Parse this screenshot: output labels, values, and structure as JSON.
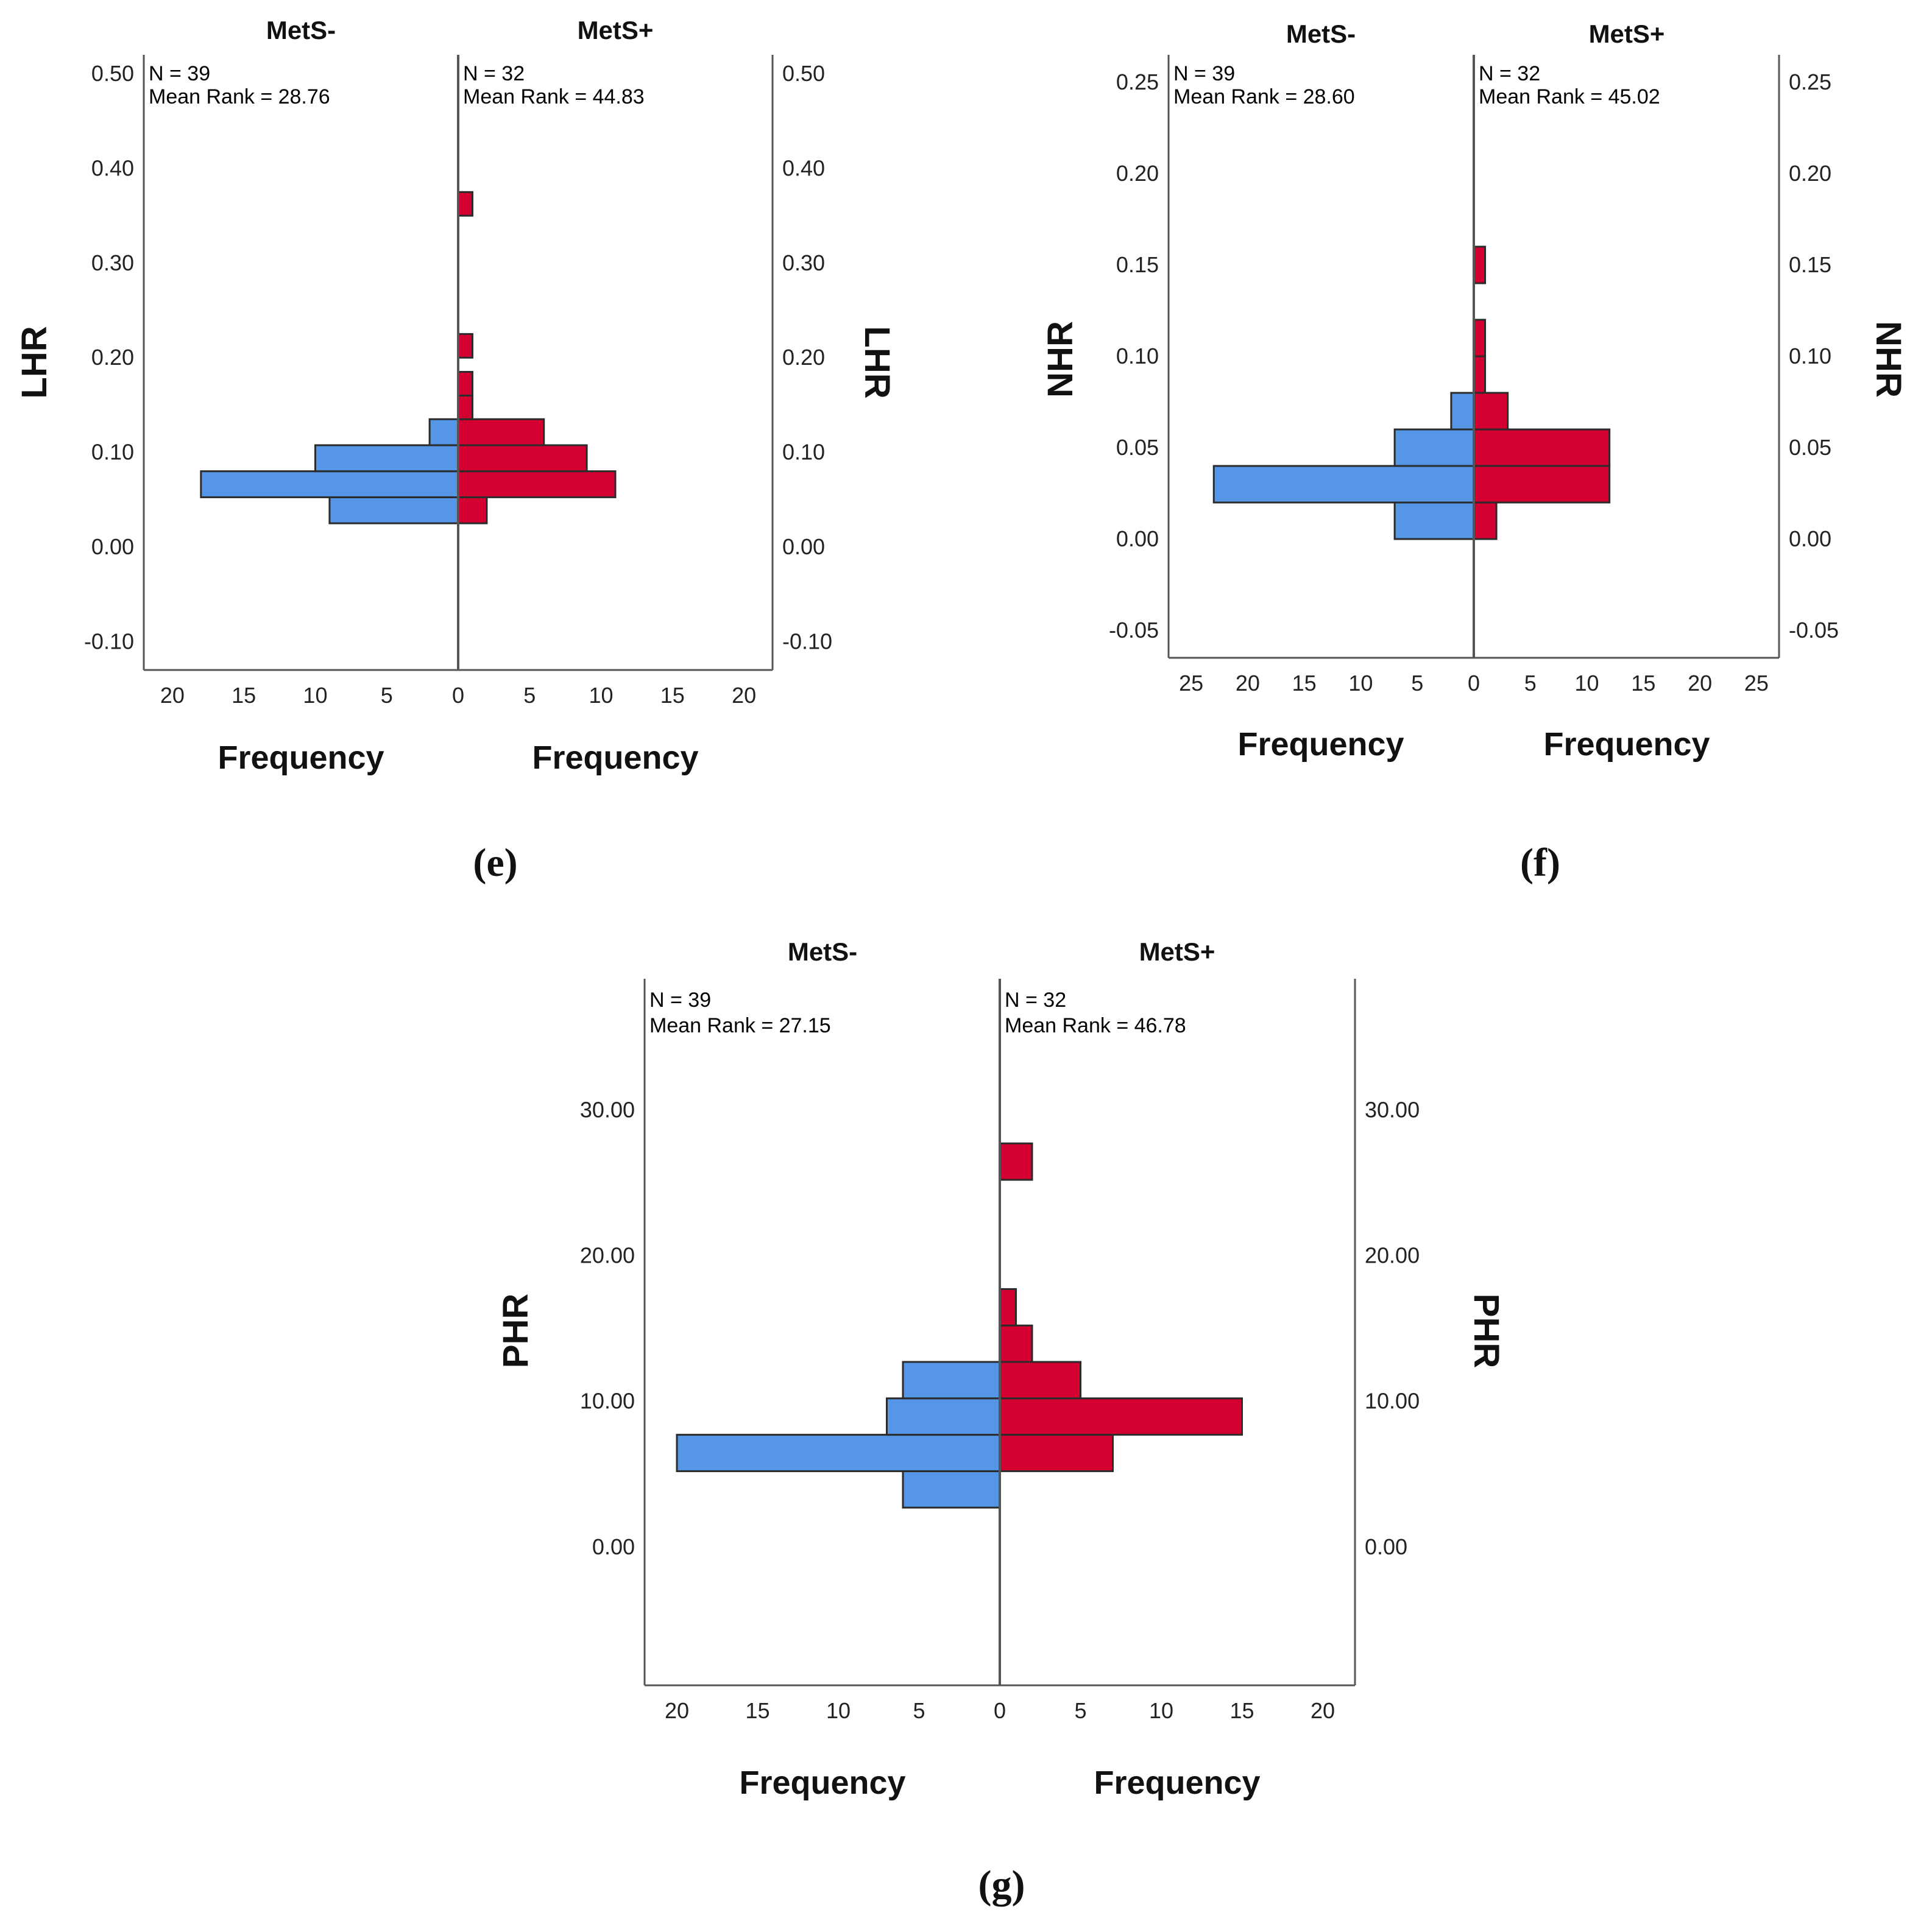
{
  "chart_data": [
    {
      "type": "bar",
      "subtype": "population-pyramid-histogram",
      "panel_label": "(e)",
      "variable": "LHR",
      "ylabel": "LHR",
      "xlabel_left": "Frequency",
      "xlabel_right": "Frequency",
      "ylim": [
        -0.13,
        0.52
      ],
      "y_ticks": [
        -0.1,
        0.0,
        0.1,
        0.2,
        0.3,
        0.4,
        0.5
      ],
      "y_tick_labels": [
        "-0.10",
        "0.00",
        "0.10",
        "0.20",
        "0.30",
        "0.40",
        "0.50"
      ],
      "x_ticks_left": [
        20,
        15,
        10,
        5,
        0
      ],
      "x_ticks_right": [
        0,
        5,
        10,
        15,
        20
      ],
      "x_tick_labels_left": [
        "20",
        "15",
        "10",
        "5",
        "0"
      ],
      "x_tick_labels_right": [
        "0",
        "5",
        "10",
        "15",
        "20"
      ],
      "xmax": 22,
      "left_group": {
        "name": "MetS-",
        "n_text": "N = 39",
        "mean_rank_text": "Mean Rank = 28.76",
        "color": "#5596e6"
      },
      "right_group": {
        "name": "MetS+",
        "n_text": "N = 32",
        "mean_rank_text": "Mean Rank = 44.83",
        "color": "#d50032"
      },
      "left_bins": [
        {
          "y0": 0.025,
          "y1": 0.0525,
          "count": 9
        },
        {
          "y0": 0.0525,
          "y1": 0.08,
          "count": 18
        },
        {
          "y0": 0.08,
          "y1": 0.1075,
          "count": 10
        },
        {
          "y0": 0.1075,
          "y1": 0.135,
          "count": 2
        }
      ],
      "right_bins": [
        {
          "y0": 0.025,
          "y1": 0.0525,
          "count": 2
        },
        {
          "y0": 0.0525,
          "y1": 0.08,
          "count": 11
        },
        {
          "y0": 0.08,
          "y1": 0.1075,
          "count": 9
        },
        {
          "y0": 0.1075,
          "y1": 0.135,
          "count": 6
        },
        {
          "y0": 0.135,
          "y1": 0.16,
          "count": 1
        },
        {
          "y0": 0.16,
          "y1": 0.185,
          "count": 1
        },
        {
          "y0": 0.2,
          "y1": 0.225,
          "count": 1
        },
        {
          "y0": 0.35,
          "y1": 0.375,
          "count": 1
        }
      ]
    },
    {
      "type": "bar",
      "subtype": "population-pyramid-histogram",
      "panel_label": "(f)",
      "variable": "NHR",
      "ylabel": "NHR",
      "xlabel_left": "Frequency",
      "xlabel_right": "Frequency",
      "ylim": [
        -0.065,
        0.265
      ],
      "y_ticks": [
        -0.05,
        0.0,
        0.05,
        0.1,
        0.15,
        0.2,
        0.25
      ],
      "y_tick_labels": [
        "-0.05",
        "0.00",
        "0.05",
        "0.10",
        "0.15",
        "0.20",
        "0.25"
      ],
      "x_ticks_left": [
        25,
        20,
        15,
        10,
        5,
        0
      ],
      "x_ticks_right": [
        0,
        5,
        10,
        15,
        20,
        25
      ],
      "x_tick_labels_left": [
        "25",
        "20",
        "15",
        "10",
        "5",
        "0"
      ],
      "x_tick_labels_right": [
        "0",
        "5",
        "10",
        "15",
        "20",
        "25"
      ],
      "xmax": 27,
      "left_group": {
        "name": "MetS-",
        "n_text": "N = 39",
        "mean_rank_text": "Mean Rank = 28.60",
        "color": "#5596e6"
      },
      "right_group": {
        "name": "MetS+",
        "n_text": "N = 32",
        "mean_rank_text": "Mean Rank = 45.02",
        "color": "#d50032"
      },
      "left_bins": [
        {
          "y0": 0.0,
          "y1": 0.02,
          "count": 7
        },
        {
          "y0": 0.02,
          "y1": 0.04,
          "count": 23
        },
        {
          "y0": 0.04,
          "y1": 0.06,
          "count": 7
        },
        {
          "y0": 0.06,
          "y1": 0.08,
          "count": 2
        }
      ],
      "right_bins": [
        {
          "y0": 0.0,
          "y1": 0.02,
          "count": 2
        },
        {
          "y0": 0.02,
          "y1": 0.04,
          "count": 12
        },
        {
          "y0": 0.04,
          "y1": 0.06,
          "count": 12
        },
        {
          "y0": 0.06,
          "y1": 0.08,
          "count": 3
        },
        {
          "y0": 0.08,
          "y1": 0.1,
          "count": 1
        },
        {
          "y0": 0.1,
          "y1": 0.12,
          "count": 1
        },
        {
          "y0": 0.14,
          "y1": 0.16,
          "count": 1
        }
      ]
    },
    {
      "type": "bar",
      "subtype": "population-pyramid-histogram",
      "panel_label": "(g)",
      "variable": "PHR",
      "ylabel": "PHR",
      "xlabel_left": "Frequency",
      "xlabel_right": "Frequency",
      "ylim": [
        -9.5,
        39
      ],
      "y_ticks": [
        0,
        10,
        20,
        30
      ],
      "y_tick_labels": [
        "0.00",
        "10.00",
        "20.00",
        "30.00"
      ],
      "x_ticks_left": [
        20,
        15,
        10,
        5,
        0
      ],
      "x_ticks_right": [
        0,
        5,
        10,
        15,
        20
      ],
      "x_tick_labels_left": [
        "20",
        "15",
        "10",
        "5",
        "0"
      ],
      "x_tick_labels_right": [
        "0",
        "5",
        "10",
        "15",
        "20"
      ],
      "xmax": 22,
      "left_group": {
        "name": "MetS-",
        "n_text": "N = 39",
        "mean_rank_text": "Mean Rank = 27.15",
        "color": "#5596e6"
      },
      "right_group": {
        "name": "MetS+",
        "n_text": "N = 32",
        "mean_rank_text": "Mean Rank = 46.78",
        "color": "#d50032"
      },
      "left_bins": [
        {
          "y0": 2.7,
          "y1": 5.2,
          "count": 6
        },
        {
          "y0": 5.2,
          "y1": 7.7,
          "count": 20
        },
        {
          "y0": 7.7,
          "y1": 10.2,
          "count": 7
        },
        {
          "y0": 10.2,
          "y1": 12.7,
          "count": 6
        }
      ],
      "right_bins": [
        {
          "y0": 5.2,
          "y1": 7.7,
          "count": 7
        },
        {
          "y0": 7.7,
          "y1": 10.2,
          "count": 15
        },
        {
          "y0": 10.2,
          "y1": 12.7,
          "count": 5
        },
        {
          "y0": 12.7,
          "y1": 15.2,
          "count": 2
        },
        {
          "y0": 15.2,
          "y1": 17.7,
          "count": 1
        },
        {
          "y0": 25.2,
          "y1": 27.7,
          "count": 2
        }
      ]
    }
  ]
}
